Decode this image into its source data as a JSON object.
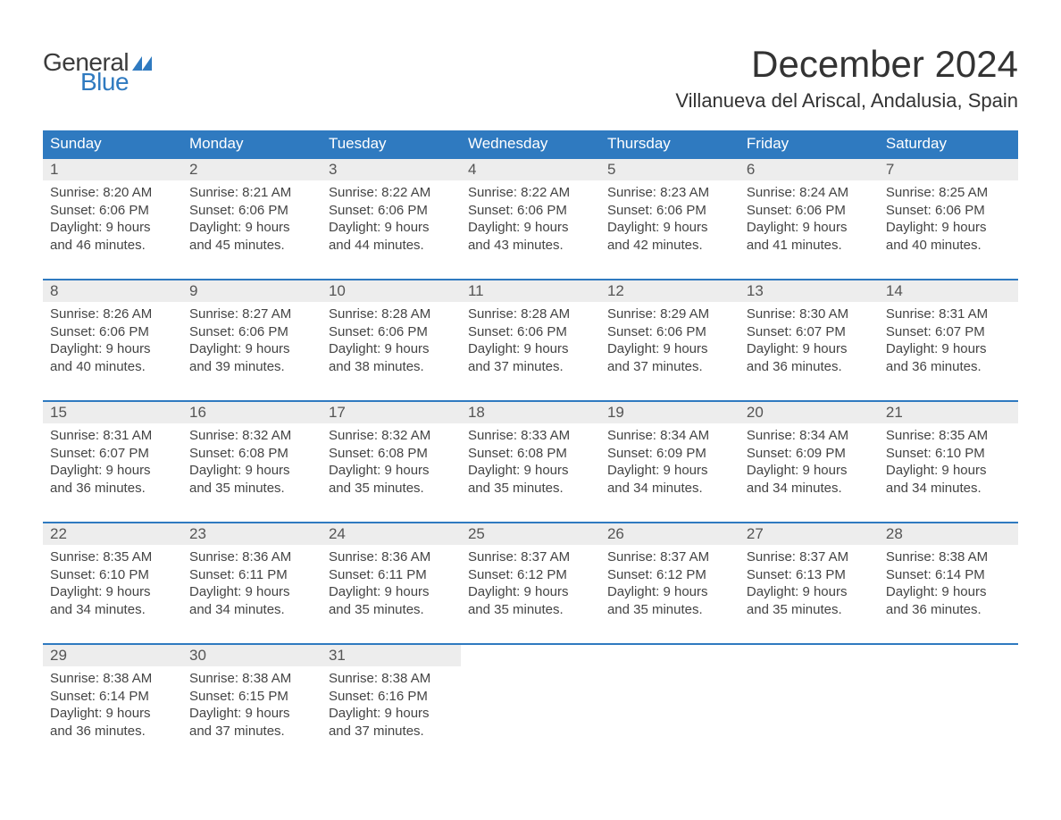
{
  "brand": {
    "name_top": "General",
    "name_bottom": "Blue",
    "flag_color": "#2f7ac0"
  },
  "title": "December 2024",
  "location": "Villanueva del Ariscal, Andalusia, Spain",
  "colors": {
    "header_bg": "#2f7ac0",
    "daynum_bg": "#ededed",
    "row_border": "#2f7ac0",
    "text": "#444444",
    "title_text": "#333333"
  },
  "day_headers": [
    "Sunday",
    "Monday",
    "Tuesday",
    "Wednesday",
    "Thursday",
    "Friday",
    "Saturday"
  ],
  "weeks": [
    [
      {
        "num": "1",
        "sunrise": "8:20 AM",
        "sunset": "6:06 PM",
        "daylight_hours": 9,
        "daylight_minutes": 46
      },
      {
        "num": "2",
        "sunrise": "8:21 AM",
        "sunset": "6:06 PM",
        "daylight_hours": 9,
        "daylight_minutes": 45
      },
      {
        "num": "3",
        "sunrise": "8:22 AM",
        "sunset": "6:06 PM",
        "daylight_hours": 9,
        "daylight_minutes": 44
      },
      {
        "num": "4",
        "sunrise": "8:22 AM",
        "sunset": "6:06 PM",
        "daylight_hours": 9,
        "daylight_minutes": 43
      },
      {
        "num": "5",
        "sunrise": "8:23 AM",
        "sunset": "6:06 PM",
        "daylight_hours": 9,
        "daylight_minutes": 42
      },
      {
        "num": "6",
        "sunrise": "8:24 AM",
        "sunset": "6:06 PM",
        "daylight_hours": 9,
        "daylight_minutes": 41
      },
      {
        "num": "7",
        "sunrise": "8:25 AM",
        "sunset": "6:06 PM",
        "daylight_hours": 9,
        "daylight_minutes": 40
      }
    ],
    [
      {
        "num": "8",
        "sunrise": "8:26 AM",
        "sunset": "6:06 PM",
        "daylight_hours": 9,
        "daylight_minutes": 40
      },
      {
        "num": "9",
        "sunrise": "8:27 AM",
        "sunset": "6:06 PM",
        "daylight_hours": 9,
        "daylight_minutes": 39
      },
      {
        "num": "10",
        "sunrise": "8:28 AM",
        "sunset": "6:06 PM",
        "daylight_hours": 9,
        "daylight_minutes": 38
      },
      {
        "num": "11",
        "sunrise": "8:28 AM",
        "sunset": "6:06 PM",
        "daylight_hours": 9,
        "daylight_minutes": 37
      },
      {
        "num": "12",
        "sunrise": "8:29 AM",
        "sunset": "6:06 PM",
        "daylight_hours": 9,
        "daylight_minutes": 37
      },
      {
        "num": "13",
        "sunrise": "8:30 AM",
        "sunset": "6:07 PM",
        "daylight_hours": 9,
        "daylight_minutes": 36
      },
      {
        "num": "14",
        "sunrise": "8:31 AM",
        "sunset": "6:07 PM",
        "daylight_hours": 9,
        "daylight_minutes": 36
      }
    ],
    [
      {
        "num": "15",
        "sunrise": "8:31 AM",
        "sunset": "6:07 PM",
        "daylight_hours": 9,
        "daylight_minutes": 36
      },
      {
        "num": "16",
        "sunrise": "8:32 AM",
        "sunset": "6:08 PM",
        "daylight_hours": 9,
        "daylight_minutes": 35
      },
      {
        "num": "17",
        "sunrise": "8:32 AM",
        "sunset": "6:08 PM",
        "daylight_hours": 9,
        "daylight_minutes": 35
      },
      {
        "num": "18",
        "sunrise": "8:33 AM",
        "sunset": "6:08 PM",
        "daylight_hours": 9,
        "daylight_minutes": 35
      },
      {
        "num": "19",
        "sunrise": "8:34 AM",
        "sunset": "6:09 PM",
        "daylight_hours": 9,
        "daylight_minutes": 34
      },
      {
        "num": "20",
        "sunrise": "8:34 AM",
        "sunset": "6:09 PM",
        "daylight_hours": 9,
        "daylight_minutes": 34
      },
      {
        "num": "21",
        "sunrise": "8:35 AM",
        "sunset": "6:10 PM",
        "daylight_hours": 9,
        "daylight_minutes": 34
      }
    ],
    [
      {
        "num": "22",
        "sunrise": "8:35 AM",
        "sunset": "6:10 PM",
        "daylight_hours": 9,
        "daylight_minutes": 34
      },
      {
        "num": "23",
        "sunrise": "8:36 AM",
        "sunset": "6:11 PM",
        "daylight_hours": 9,
        "daylight_minutes": 34
      },
      {
        "num": "24",
        "sunrise": "8:36 AM",
        "sunset": "6:11 PM",
        "daylight_hours": 9,
        "daylight_minutes": 35
      },
      {
        "num": "25",
        "sunrise": "8:37 AM",
        "sunset": "6:12 PM",
        "daylight_hours": 9,
        "daylight_minutes": 35
      },
      {
        "num": "26",
        "sunrise": "8:37 AM",
        "sunset": "6:12 PM",
        "daylight_hours": 9,
        "daylight_minutes": 35
      },
      {
        "num": "27",
        "sunrise": "8:37 AM",
        "sunset": "6:13 PM",
        "daylight_hours": 9,
        "daylight_minutes": 35
      },
      {
        "num": "28",
        "sunrise": "8:38 AM",
        "sunset": "6:14 PM",
        "daylight_hours": 9,
        "daylight_minutes": 36
      }
    ],
    [
      {
        "num": "29",
        "sunrise": "8:38 AM",
        "sunset": "6:14 PM",
        "daylight_hours": 9,
        "daylight_minutes": 36
      },
      {
        "num": "30",
        "sunrise": "8:38 AM",
        "sunset": "6:15 PM",
        "daylight_hours": 9,
        "daylight_minutes": 37
      },
      {
        "num": "31",
        "sunrise": "8:38 AM",
        "sunset": "6:16 PM",
        "daylight_hours": 9,
        "daylight_minutes": 37
      },
      null,
      null,
      null,
      null
    ]
  ],
  "labels": {
    "sunrise": "Sunrise: ",
    "sunset": "Sunset: ",
    "daylight_prefix": "Daylight: ",
    "hours_word": " hours",
    "and_word": "and ",
    "minutes_word": " minutes."
  }
}
